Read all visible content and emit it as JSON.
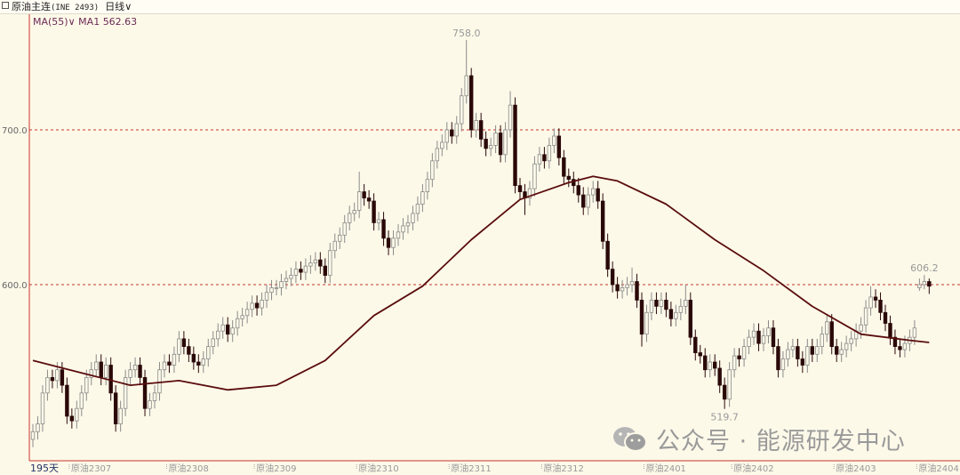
{
  "header": {
    "instrument": "原油主连",
    "code": "(INE 2493)",
    "period": "日线",
    "period_icon": "chevron-down-icon"
  },
  "indicator": {
    "name": "MA(55)",
    "label": "MA1",
    "value": "562.63"
  },
  "footer": {
    "days": "195天"
  },
  "watermark": {
    "text": "公众号 · 能源研发中心",
    "icon": "wechat-icon"
  },
  "colors": {
    "background": "#fdf9e9",
    "axis": "#c8352a",
    "grid": "#c8352a",
    "up": "#fdf9e9",
    "up_border": "#8a8a8a",
    "down": "#2a0808",
    "ma": "#5a0d0d"
  },
  "chart_data": {
    "type": "candlestick",
    "title": "",
    "ylim": [
      490,
      770
    ],
    "y_ticks": [
      {
        "value": 600,
        "label": "600.0"
      },
      {
        "value": 700,
        "label": "700.0"
      }
    ],
    "grid": "horizontal dashed at ticks",
    "x_labels": [
      {
        "index": 8,
        "label": "原油2307"
      },
      {
        "index": 28,
        "label": "原油2308"
      },
      {
        "index": 46,
        "label": "原油2309"
      },
      {
        "index": 67,
        "label": "原油2310"
      },
      {
        "index": 86,
        "label": "原油2311"
      },
      {
        "index": 105,
        "label": "原油2312"
      },
      {
        "index": 126,
        "label": "原油2401"
      },
      {
        "index": 144,
        "label": "原油2402"
      },
      {
        "index": 165,
        "label": "原油2403"
      },
      {
        "index": 182,
        "label": "原油2404"
      }
    ],
    "annotations": [
      {
        "index": 89,
        "value": 758.0,
        "label": "758.0",
        "position": "above"
      },
      {
        "index": 142,
        "value": 519.7,
        "label": "519.7",
        "position": "below"
      },
      {
        "index": 183,
        "value": 606.2,
        "label": "606.2",
        "position": "above"
      }
    ],
    "open": [
      500,
      505,
      510,
      530,
      540,
      538,
      545,
      535,
      515,
      512,
      520,
      530,
      540,
      545,
      550,
      540,
      548,
      530,
      510,
      520,
      540,
      545,
      548,
      540,
      520,
      525,
      530,
      545,
      550,
      548,
      555,
      565,
      560,
      555,
      550,
      548,
      552,
      560,
      565,
      570,
      574,
      568,
      572,
      578,
      580,
      584,
      588,
      585,
      590,
      595,
      598,
      598,
      602,
      604,
      606,
      610,
      608,
      612,
      614,
      616,
      612,
      606,
      622,
      628,
      632,
      640,
      646,
      648,
      660,
      656,
      654,
      640,
      642,
      630,
      624,
      630,
      634,
      638,
      640,
      646,
      652,
      660,
      668,
      680,
      688,
      692,
      700,
      696,
      704,
      722,
      735,
      700,
      706,
      694,
      688,
      690,
      698,
      684,
      700,
      716,
      664,
      660,
      656,
      662,
      678,
      684,
      680,
      690,
      696,
      682,
      670,
      668,
      664,
      658,
      650,
      658,
      662,
      654,
      628,
      610,
      600,
      596,
      598,
      600,
      602,
      590,
      568,
      582,
      590,
      586,
      590,
      584,
      578,
      582,
      586,
      590,
      566,
      556,
      554,
      545,
      550,
      546,
      535,
      526,
      545,
      554,
      552,
      560,
      566,
      570,
      562,
      567,
      572,
      560,
      545,
      552,
      558,
      560,
      552,
      548,
      560,
      555,
      560,
      568,
      576,
      560,
      555,
      558,
      562,
      565,
      570,
      574,
      585,
      592,
      590,
      582,
      575,
      566,
      560,
      558,
      562,
      566,
      598,
      600,
      602
    ],
    "high": [
      510,
      515,
      535,
      545,
      545,
      550,
      550,
      540,
      520,
      525,
      535,
      545,
      550,
      555,
      555,
      553,
      553,
      535,
      525,
      545,
      550,
      553,
      553,
      545,
      530,
      535,
      550,
      555,
      555,
      560,
      570,
      570,
      565,
      560,
      555,
      557,
      565,
      570,
      575,
      579,
      579,
      577,
      583,
      585,
      589,
      593,
      593,
      595,
      600,
      603,
      603,
      607,
      609,
      611,
      615,
      615,
      617,
      619,
      621,
      621,
      617,
      627,
      633,
      637,
      645,
      651,
      653,
      673,
      665,
      661,
      659,
      647,
      647,
      635,
      635,
      639,
      643,
      645,
      651,
      657,
      665,
      673,
      685,
      693,
      697,
      705,
      705,
      709,
      727,
      758,
      740,
      711,
      711,
      699,
      695,
      703,
      703,
      705,
      725,
      721,
      669,
      665,
      667,
      683,
      689,
      689,
      695,
      701,
      701,
      687,
      675,
      673,
      669,
      663,
      663,
      667,
      667,
      659,
      633,
      615,
      605,
      603,
      605,
      611,
      607,
      595,
      587,
      595,
      595,
      595,
      595,
      589,
      587,
      591,
      600,
      595,
      571,
      561,
      559,
      555,
      555,
      551,
      540,
      550,
      559,
      559,
      565,
      571,
      575,
      575,
      572,
      577,
      577,
      565,
      557,
      563,
      565,
      565,
      557,
      565,
      565,
      565,
      573,
      581,
      581,
      565,
      563,
      567,
      570,
      575,
      579,
      590,
      599,
      597,
      595,
      587,
      580,
      571,
      565,
      567,
      571,
      577,
      604,
      606.2,
      604
    ],
    "low": [
      495,
      500,
      505,
      525,
      533,
      533,
      530,
      510,
      507,
      507,
      515,
      525,
      535,
      540,
      535,
      535,
      525,
      505,
      505,
      515,
      535,
      540,
      535,
      515,
      515,
      520,
      525,
      540,
      543,
      543,
      550,
      555,
      550,
      545,
      543,
      543,
      547,
      555,
      560,
      565,
      563,
      563,
      567,
      573,
      575,
      579,
      580,
      580,
      585,
      590,
      593,
      593,
      597,
      599,
      601,
      603,
      603,
      607,
      609,
      607,
      601,
      601,
      617,
      623,
      627,
      635,
      641,
      643,
      651,
      649,
      635,
      635,
      625,
      619,
      619,
      625,
      629,
      633,
      635,
      641,
      647,
      655,
      663,
      675,
      683,
      687,
      691,
      691,
      699,
      717,
      695,
      695,
      689,
      683,
      683,
      685,
      679,
      679,
      695,
      659,
      655,
      645,
      651,
      657,
      673,
      675,
      675,
      685,
      677,
      665,
      663,
      659,
      653,
      645,
      645,
      653,
      649,
      623,
      605,
      595,
      591,
      591,
      593,
      595,
      585,
      560,
      563,
      577,
      581,
      581,
      579,
      573,
      573,
      577,
      581,
      561,
      551,
      549,
      540,
      540,
      541,
      530,
      519.7,
      521,
      540,
      547,
      547,
      555,
      561,
      557,
      557,
      562,
      555,
      540,
      540,
      547,
      553,
      547,
      543,
      543,
      550,
      550,
      555,
      563,
      555,
      550,
      550,
      553,
      557,
      560,
      565,
      569,
      580,
      585,
      577,
      570,
      561,
      555,
      553,
      553,
      557,
      561,
      596,
      597,
      594
    ],
    "close": [
      505,
      510,
      530,
      540,
      538,
      545,
      535,
      515,
      512,
      520,
      530,
      540,
      545,
      550,
      540,
      548,
      530,
      510,
      520,
      540,
      545,
      548,
      540,
      520,
      525,
      530,
      545,
      550,
      548,
      555,
      565,
      560,
      555,
      550,
      548,
      552,
      560,
      565,
      570,
      574,
      568,
      572,
      578,
      580,
      584,
      588,
      585,
      590,
      595,
      598,
      598,
      602,
      604,
      606,
      610,
      608,
      612,
      614,
      616,
      612,
      606,
      622,
      628,
      632,
      640,
      646,
      648,
      660,
      656,
      654,
      640,
      642,
      630,
      624,
      630,
      634,
      638,
      640,
      646,
      652,
      660,
      668,
      680,
      688,
      692,
      700,
      696,
      704,
      722,
      735,
      700,
      706,
      694,
      688,
      690,
      698,
      684,
      700,
      716,
      664,
      660,
      656,
      662,
      678,
      684,
      680,
      690,
      696,
      682,
      670,
      668,
      664,
      658,
      650,
      658,
      662,
      654,
      628,
      610,
      600,
      596,
      598,
      600,
      602,
      590,
      568,
      582,
      590,
      586,
      590,
      584,
      578,
      582,
      586,
      590,
      566,
      556,
      554,
      545,
      550,
      546,
      535,
      526,
      545,
      554,
      552,
      560,
      566,
      570,
      562,
      567,
      572,
      560,
      545,
      552,
      558,
      560,
      552,
      548,
      560,
      555,
      560,
      568,
      576,
      560,
      555,
      558,
      562,
      565,
      570,
      574,
      585,
      592,
      590,
      582,
      575,
      566,
      560,
      558,
      562,
      566,
      572,
      600,
      602,
      599
    ],
    "ma55": [
      {
        "index": 0,
        "value": 551
      },
      {
        "index": 10,
        "value": 543
      },
      {
        "index": 20,
        "value": 535
      },
      {
        "index": 30,
        "value": 538
      },
      {
        "index": 40,
        "value": 532
      },
      {
        "index": 50,
        "value": 535
      },
      {
        "index": 60,
        "value": 551
      },
      {
        "index": 70,
        "value": 580
      },
      {
        "index": 80,
        "value": 599
      },
      {
        "index": 90,
        "value": 629
      },
      {
        "index": 100,
        "value": 655
      },
      {
        "index": 110,
        "value": 666
      },
      {
        "index": 115,
        "value": 670
      },
      {
        "index": 120,
        "value": 667
      },
      {
        "index": 130,
        "value": 652
      },
      {
        "index": 140,
        "value": 629
      },
      {
        "index": 150,
        "value": 609
      },
      {
        "index": 160,
        "value": 586
      },
      {
        "index": 170,
        "value": 568
      },
      {
        "index": 180,
        "value": 564
      },
      {
        "index": 184,
        "value": 562.63
      }
    ]
  }
}
